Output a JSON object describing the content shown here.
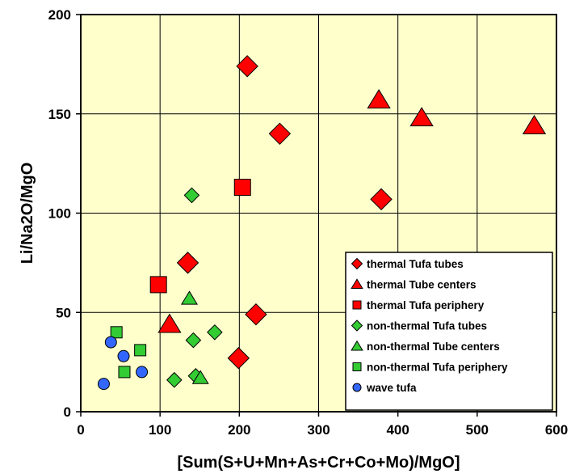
{
  "chart_data": {
    "type": "scatter",
    "title": "",
    "xlabel": "[Sum(S+U+Mn+As+Cr+Co+Mo)/MgO]",
    "ylabel": "Li/Na2O/MgO",
    "xlim": [
      0,
      600
    ],
    "ylim": [
      0,
      200
    ],
    "x_ticks": [
      "0",
      "100",
      "200",
      "300",
      "400",
      "500",
      "600"
    ],
    "y_ticks": [
      "0",
      "50",
      "100",
      "150",
      "200"
    ],
    "grid": true,
    "legend_position": "bottom-right",
    "plot_background": "#FFFFCC",
    "series": [
      {
        "name": "thermal Tufa tubes",
        "marker": "diamond",
        "color": "#FF0000",
        "size": "large",
        "points": [
          [
            210,
            174
          ],
          [
            251,
            140
          ],
          [
            379,
            107
          ],
          [
            135,
            75
          ],
          [
            221,
            49
          ],
          [
            199,
            27
          ]
        ]
      },
      {
        "name": "thermal Tube centers",
        "marker": "triangle",
        "color": "#FF0000",
        "size": "large",
        "points": [
          [
            376,
            157
          ],
          [
            430,
            148
          ],
          [
            572,
            144
          ],
          [
            112,
            44
          ]
        ]
      },
      {
        "name": "thermal Tufa periphery",
        "marker": "square",
        "color": "#FF0000",
        "size": "large",
        "points": [
          [
            204,
            113
          ],
          [
            98,
            64
          ]
        ]
      },
      {
        "name": "non-thermal Tufa tubes",
        "marker": "diamond",
        "color": "#33CC33",
        "size": "small",
        "points": [
          [
            140,
            109
          ],
          [
            142,
            36
          ],
          [
            169,
            40
          ],
          [
            118,
            16
          ],
          [
            145,
            18
          ]
        ]
      },
      {
        "name": "non-thermal Tube centers",
        "marker": "triangle",
        "color": "#33CC33",
        "size": "small",
        "points": [
          [
            137,
            57
          ],
          [
            151,
            17
          ]
        ]
      },
      {
        "name": "non-thermal Tufa periphery",
        "marker": "square",
        "color": "#33CC33",
        "size": "small",
        "points": [
          [
            45,
            40
          ],
          [
            75,
            31
          ],
          [
            55,
            20
          ]
        ]
      },
      {
        "name": "wave tufa",
        "marker": "circle",
        "color": "#3366FF",
        "size": "small",
        "points": [
          [
            38,
            35
          ],
          [
            54,
            28
          ],
          [
            77,
            20
          ],
          [
            29,
            14
          ]
        ]
      }
    ]
  }
}
